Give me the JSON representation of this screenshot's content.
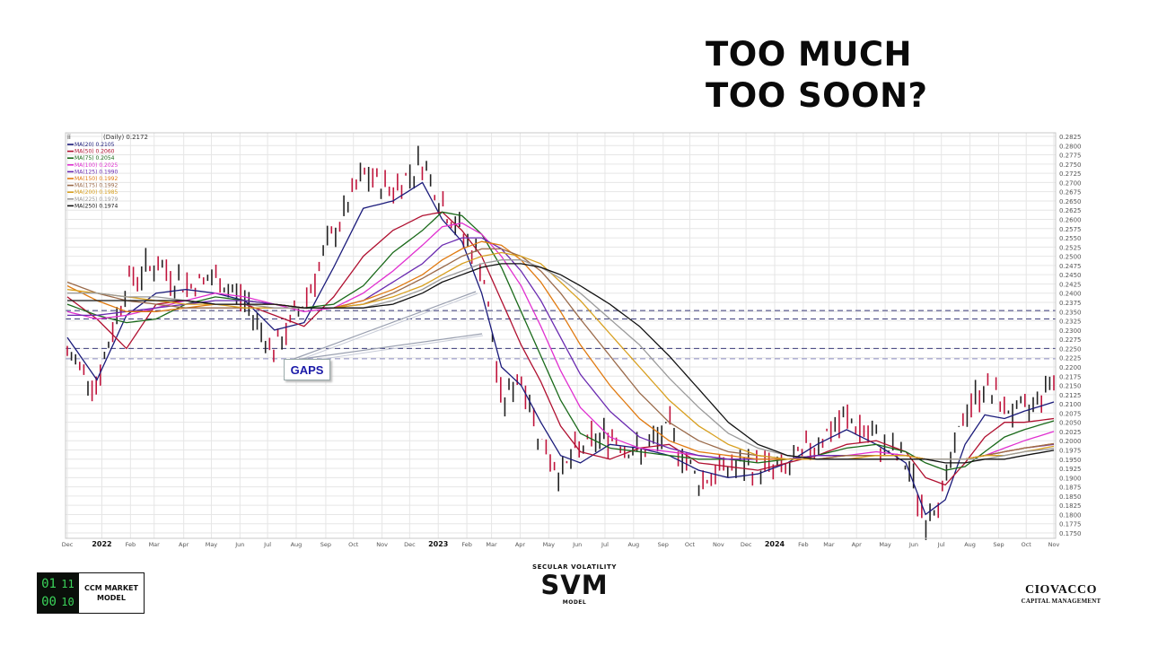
{
  "headline": {
    "line1": "TOO MUCH",
    "line2": "TOO SOON?"
  },
  "annotation": {
    "label": "GAPS",
    "color": "#1a1aa8"
  },
  "footer": {
    "ccm": {
      "digits": [
        "01",
        "11",
        "00",
        "10"
      ],
      "line1": "CCM MARKET",
      "line2": "MODEL"
    },
    "svm": {
      "subtitle": "SECULAR VOLATILITY",
      "title": "SVM",
      "caption": "MODEL"
    },
    "brand": {
      "name": "CIOVACCO",
      "tagline": "CAPITAL MANAGEMENT"
    }
  },
  "chart_data": {
    "type": "line",
    "title": "(Daily) 0.2172",
    "symbol_label": "ÍÍ",
    "xlabel": "",
    "ylabel": "",
    "ylim": [
      0.175,
      0.2825
    ],
    "grid": true,
    "legend_position": "top-left",
    "x_ticks": [
      {
        "label": "Dec",
        "x": 0.0,
        "bold": false
      },
      {
        "label": "2022",
        "x": 0.035,
        "bold": true
      },
      {
        "label": "Feb",
        "x": 0.064,
        "bold": false
      },
      {
        "label": "Mar",
        "x": 0.088,
        "bold": false
      },
      {
        "label": "Apr",
        "x": 0.118,
        "bold": false
      },
      {
        "label": "May",
        "x": 0.146,
        "bold": false
      },
      {
        "label": "Jun",
        "x": 0.175,
        "bold": false
      },
      {
        "label": "Jul",
        "x": 0.203,
        "bold": false
      },
      {
        "label": "Aug",
        "x": 0.232,
        "bold": false
      },
      {
        "label": "Sep",
        "x": 0.262,
        "bold": false
      },
      {
        "label": "Oct",
        "x": 0.29,
        "bold": false
      },
      {
        "label": "Nov",
        "x": 0.319,
        "bold": false
      },
      {
        "label": "Dec",
        "x": 0.347,
        "bold": false
      },
      {
        "label": "2023",
        "x": 0.376,
        "bold": true
      },
      {
        "label": "Feb",
        "x": 0.405,
        "bold": false
      },
      {
        "label": "Mar",
        "x": 0.43,
        "bold": false
      },
      {
        "label": "Apr",
        "x": 0.459,
        "bold": false
      },
      {
        "label": "May",
        "x": 0.488,
        "bold": false
      },
      {
        "label": "Jun",
        "x": 0.517,
        "bold": false
      },
      {
        "label": "Jul",
        "x": 0.545,
        "bold": false
      },
      {
        "label": "Aug",
        "x": 0.574,
        "bold": false
      },
      {
        "label": "Sep",
        "x": 0.604,
        "bold": false
      },
      {
        "label": "Oct",
        "x": 0.631,
        "bold": false
      },
      {
        "label": "Nov",
        "x": 0.66,
        "bold": false
      },
      {
        "label": "Dec",
        "x": 0.688,
        "bold": false
      },
      {
        "label": "2024",
        "x": 0.717,
        "bold": true
      },
      {
        "label": "Feb",
        "x": 0.746,
        "bold": false
      },
      {
        "label": "Mar",
        "x": 0.772,
        "bold": false
      },
      {
        "label": "Apr",
        "x": 0.8,
        "bold": false
      },
      {
        "label": "May",
        "x": 0.829,
        "bold": false
      },
      {
        "label": "Jun",
        "x": 0.858,
        "bold": false
      },
      {
        "label": "Jul",
        "x": 0.886,
        "bold": false
      },
      {
        "label": "Aug",
        "x": 0.915,
        "bold": false
      },
      {
        "label": "Sep",
        "x": 0.944,
        "bold": false
      },
      {
        "label": "Oct",
        "x": 0.972,
        "bold": false
      },
      {
        "label": "Nov",
        "x": 1.0,
        "bold": false
      }
    ],
    "y_ticks": [
      "0.2825",
      "0.2800",
      "0.2775",
      "0.2750",
      "0.2725",
      "0.2700",
      "0.2675",
      "0.2650",
      "0.2625",
      "0.2600",
      "0.2575",
      "0.2550",
      "0.2525",
      "0.2500",
      "0.2475",
      "0.2450",
      "0.2425",
      "0.2400",
      "0.2375",
      "0.2350",
      "0.2325",
      "0.2300",
      "0.2275",
      "0.2250",
      "0.2225",
      "0.2200",
      "0.2175",
      "0.2150",
      "0.2125",
      "0.2100",
      "0.2075",
      "0.2050",
      "0.2025",
      "0.2000",
      "0.1975",
      "0.1950",
      "0.1925",
      "0.1900",
      "0.1875",
      "0.1850",
      "0.1825",
      "0.1800",
      "0.1775",
      "0.1750"
    ],
    "reference_lines": [
      {
        "value": 0.2353,
        "color": "#3a3a7a",
        "style": "dashed"
      },
      {
        "value": 0.233,
        "color": "#3a3a7a",
        "style": "dashed"
      },
      {
        "value": 0.225,
        "color": "#3a3a7a",
        "style": "dashed"
      },
      {
        "value": 0.2222,
        "color": "#8a8ac0",
        "style": "dashed"
      }
    ],
    "legend": [
      {
        "name": "MA(20)",
        "value": "0.2105",
        "color": "#1a1a7a"
      },
      {
        "name": "MA(50)",
        "value": "0.2060",
        "color": "#b01030"
      },
      {
        "name": "MA(75)",
        "value": "0.2054",
        "color": "#1a6a1a"
      },
      {
        "name": "MA(100)",
        "value": "0.2025",
        "color": "#e030d0"
      },
      {
        "name": "MA(125)",
        "value": "0.1990",
        "color": "#6a2ab0"
      },
      {
        "name": "MA(150)",
        "value": "0.1992",
        "color": "#e07a10"
      },
      {
        "name": "MA(175)",
        "value": "0.1992",
        "color": "#9a6a4a"
      },
      {
        "name": "MA(200)",
        "value": "0.1985",
        "color": "#d8a020"
      },
      {
        "name": "MA(225)",
        "value": "0.1979",
        "color": "#9a9a9a"
      },
      {
        "name": "MA(250)",
        "value": "0.1974",
        "color": "#111111"
      }
    ],
    "x": [
      0.0,
      0.03,
      0.06,
      0.09,
      0.12,
      0.15,
      0.18,
      0.21,
      0.24,
      0.27,
      0.3,
      0.33,
      0.36,
      0.38,
      0.4,
      0.42,
      0.44,
      0.46,
      0.48,
      0.5,
      0.52,
      0.55,
      0.58,
      0.61,
      0.64,
      0.67,
      0.7,
      0.73,
      0.76,
      0.79,
      0.82,
      0.85,
      0.87,
      0.89,
      0.91,
      0.93,
      0.95,
      0.97,
      1.0
    ],
    "price": [
      0.2235,
      0.2155,
      0.243,
      0.248,
      0.242,
      0.244,
      0.238,
      0.224,
      0.238,
      0.256,
      0.272,
      0.268,
      0.276,
      0.264,
      0.256,
      0.248,
      0.21,
      0.218,
      0.2,
      0.191,
      0.198,
      0.202,
      0.196,
      0.203,
      0.189,
      0.193,
      0.193,
      0.192,
      0.2,
      0.206,
      0.2,
      0.194,
      0.179,
      0.188,
      0.208,
      0.215,
      0.209,
      0.207,
      0.2172
    ],
    "series": [
      {
        "name": "MA(20)",
        "values": [
          0.228,
          0.2165,
          0.234,
          0.24,
          0.241,
          0.24,
          0.238,
          0.23,
          0.232,
          0.247,
          0.263,
          0.265,
          0.27,
          0.26,
          0.254,
          0.24,
          0.22,
          0.215,
          0.205,
          0.196,
          0.194,
          0.199,
          0.198,
          0.196,
          0.192,
          0.19,
          0.191,
          0.194,
          0.199,
          0.203,
          0.199,
          0.194,
          0.18,
          0.184,
          0.199,
          0.207,
          0.206,
          0.208,
          0.2105
        ]
      },
      {
        "name": "MA(50)",
        "values": [
          0.239,
          0.233,
          0.225,
          0.237,
          0.238,
          0.237,
          0.237,
          0.234,
          0.231,
          0.239,
          0.25,
          0.257,
          0.261,
          0.262,
          0.257,
          0.25,
          0.238,
          0.226,
          0.216,
          0.204,
          0.197,
          0.195,
          0.198,
          0.199,
          0.194,
          0.193,
          0.192,
          0.194,
          0.196,
          0.199,
          0.2,
          0.197,
          0.19,
          0.188,
          0.194,
          0.201,
          0.205,
          0.205,
          0.206
        ]
      },
      {
        "name": "MA(75)",
        "values": [
          0.237,
          0.234,
          0.232,
          0.233,
          0.237,
          0.239,
          0.238,
          0.237,
          0.236,
          0.237,
          0.242,
          0.251,
          0.257,
          0.262,
          0.261,
          0.256,
          0.247,
          0.235,
          0.223,
          0.211,
          0.202,
          0.198,
          0.197,
          0.196,
          0.195,
          0.195,
          0.194,
          0.195,
          0.196,
          0.198,
          0.199,
          0.197,
          0.194,
          0.192,
          0.193,
          0.197,
          0.201,
          0.203,
          0.2054
        ]
      },
      {
        "name": "MA(100)",
        "values": [
          0.235,
          0.233,
          0.234,
          0.236,
          0.238,
          0.24,
          0.239,
          0.237,
          0.235,
          0.236,
          0.24,
          0.246,
          0.253,
          0.258,
          0.259,
          0.256,
          0.25,
          0.242,
          0.231,
          0.219,
          0.209,
          0.201,
          0.198,
          0.197,
          0.196,
          0.195,
          0.195,
          0.195,
          0.196,
          0.196,
          0.197,
          0.196,
          0.195,
          0.195,
          0.195,
          0.196,
          0.198,
          0.2,
          0.2025
        ]
      },
      {
        "name": "MA(125)",
        "values": [
          0.234,
          0.234,
          0.235,
          0.236,
          0.237,
          0.238,
          0.238,
          0.237,
          0.236,
          0.236,
          0.238,
          0.243,
          0.248,
          0.253,
          0.255,
          0.255,
          0.252,
          0.246,
          0.238,
          0.228,
          0.218,
          0.208,
          0.201,
          0.198,
          0.196,
          0.195,
          0.195,
          0.195,
          0.196,
          0.196,
          0.196,
          0.196,
          0.195,
          0.195,
          0.195,
          0.196,
          0.197,
          0.198,
          0.199
        ]
      },
      {
        "name": "MA(150)",
        "values": [
          0.242,
          0.238,
          0.235,
          0.235,
          0.236,
          0.237,
          0.237,
          0.237,
          0.236,
          0.236,
          0.238,
          0.241,
          0.245,
          0.249,
          0.252,
          0.254,
          0.253,
          0.249,
          0.243,
          0.235,
          0.226,
          0.215,
          0.206,
          0.2,
          0.197,
          0.196,
          0.195,
          0.195,
          0.195,
          0.196,
          0.196,
          0.196,
          0.195,
          0.195,
          0.195,
          0.196,
          0.197,
          0.198,
          0.1992
        ]
      },
      {
        "name": "MA(175)",
        "values": [
          0.243,
          0.24,
          0.238,
          0.237,
          0.236,
          0.236,
          0.236,
          0.236,
          0.236,
          0.236,
          0.237,
          0.24,
          0.244,
          0.247,
          0.25,
          0.252,
          0.252,
          0.25,
          0.246,
          0.24,
          0.233,
          0.223,
          0.213,
          0.205,
          0.2,
          0.197,
          0.196,
          0.195,
          0.195,
          0.196,
          0.196,
          0.196,
          0.195,
          0.195,
          0.195,
          0.196,
          0.197,
          0.198,
          0.1992
        ]
      },
      {
        "name": "MA(200)",
        "values": [
          0.241,
          0.24,
          0.239,
          0.238,
          0.237,
          0.237,
          0.236,
          0.236,
          0.236,
          0.236,
          0.237,
          0.239,
          0.242,
          0.245,
          0.248,
          0.25,
          0.251,
          0.25,
          0.248,
          0.243,
          0.238,
          0.229,
          0.22,
          0.211,
          0.204,
          0.199,
          0.196,
          0.195,
          0.195,
          0.195,
          0.196,
          0.196,
          0.195,
          0.195,
          0.195,
          0.196,
          0.196,
          0.197,
          0.1985
        ]
      },
      {
        "name": "MA(225)",
        "values": [
          0.24,
          0.24,
          0.239,
          0.239,
          0.238,
          0.237,
          0.237,
          0.236,
          0.236,
          0.236,
          0.236,
          0.238,
          0.241,
          0.244,
          0.246,
          0.248,
          0.249,
          0.249,
          0.247,
          0.244,
          0.24,
          0.233,
          0.226,
          0.217,
          0.209,
          0.202,
          0.198,
          0.196,
          0.195,
          0.195,
          0.195,
          0.195,
          0.195,
          0.195,
          0.195,
          0.195,
          0.196,
          0.197,
          0.1979
        ]
      },
      {
        "name": "MA(250)",
        "values": [
          0.238,
          0.238,
          0.238,
          0.238,
          0.238,
          0.237,
          0.237,
          0.237,
          0.236,
          0.236,
          0.236,
          0.237,
          0.24,
          0.243,
          0.245,
          0.247,
          0.248,
          0.248,
          0.247,
          0.245,
          0.242,
          0.237,
          0.231,
          0.223,
          0.214,
          0.205,
          0.199,
          0.196,
          0.195,
          0.195,
          0.195,
          0.195,
          0.195,
          0.194,
          0.194,
          0.195,
          0.195,
          0.196,
          0.1974
        ]
      }
    ]
  }
}
